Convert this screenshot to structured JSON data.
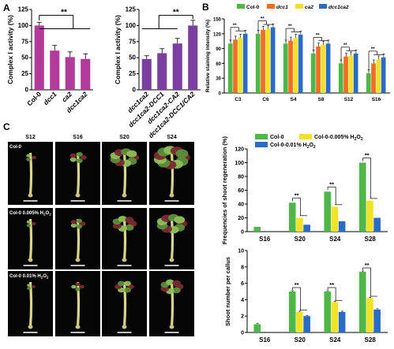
{
  "panel_letters": {
    "a": "A",
    "b": "B",
    "c": "C"
  },
  "chart_data": [
    {
      "panel": "A",
      "type": "bar",
      "ylabel": "Complex  I activity (%)",
      "ylim": [
        0,
        125
      ],
      "yticks": [
        0,
        25,
        50,
        75,
        100,
        125
      ],
      "categories": [
        "Col-0",
        "dcc1",
        "ca2",
        "dcc1ca2"
      ],
      "values": [
        100,
        61,
        51,
        48
      ],
      "errors": [
        5,
        8,
        8,
        8
      ],
      "color": "#b23a9b",
      "significance": "**"
    },
    {
      "panel": "A",
      "type": "bar",
      "ylabel": "Complex  I activity (%)",
      "ylim": [
        0,
        125
      ],
      "yticks": [
        0,
        25,
        50,
        75,
        100,
        125
      ],
      "categories": [
        "dcc1ca2",
        "dcc1ca2-DCC1",
        "dcc1ca2-CA2",
        "dcc1ca2-DCC1/CA2"
      ],
      "values": [
        48,
        57,
        72,
        100
      ],
      "errors": [
        5,
        7,
        8,
        8
      ],
      "color": "#7b3fa0",
      "significance": "**"
    },
    {
      "panel": "B",
      "type": "bar",
      "ylabel": "Relative staining intensity (%)",
      "ylim": [
        0,
        150
      ],
      "yticks": [
        0,
        30,
        60,
        90,
        120,
        150
      ],
      "categories": [
        "C3",
        "C6",
        "S4",
        "S8",
        "S12",
        "S16"
      ],
      "series": [
        {
          "name": "Col-0",
          "color": "#4db848",
          "values": [
            100,
            120,
            100,
            80,
            60,
            40
          ]
        },
        {
          "name": "dcc1",
          "color": "#f26d21",
          "values": [
            108,
            128,
            106,
            94,
            74,
            60
          ]
        },
        {
          "name": "ca2",
          "color": "#f2e227",
          "values": [
            112,
            130,
            112,
            98,
            76,
            68
          ]
        },
        {
          "name": "dcc1ca2",
          "color": "#2a6ac8",
          "values": [
            120,
            133,
            118,
            100,
            80,
            72
          ]
        }
      ],
      "significance": [
        "**",
        "**",
        "**",
        "**",
        "**",
        "**"
      ]
    },
    {
      "panel": "C",
      "type": "bar",
      "ylabel": "Frequencies of shoot regeneration (%)",
      "ylim": [
        0,
        120
      ],
      "yticks": [
        0,
        20,
        40,
        60,
        80,
        100,
        120
      ],
      "categories": [
        "S16",
        "S20",
        "S24",
        "S28"
      ],
      "series": [
        {
          "name": "Col-0",
          "color": "#4db848",
          "values": [
            7,
            42,
            58,
            100
          ]
        },
        {
          "name": "Col-0-0.005% H2O2",
          "color": "#f2e227",
          "values": [
            0,
            20,
            36,
            45
          ]
        },
        {
          "name": "Col-0-0.01% H2O2",
          "color": "#2a6ac8",
          "values": [
            0,
            10,
            15,
            20
          ]
        }
      ],
      "significance": [
        "",
        "**",
        "**",
        "**"
      ]
    },
    {
      "panel": "C",
      "type": "bar",
      "ylabel": "Shoot number per callus",
      "ylim": [
        0,
        10
      ],
      "yticks": [
        0,
        2,
        4,
        6,
        8,
        10
      ],
      "categories": [
        "S16",
        "S20",
        "S24",
        "S28"
      ],
      "series": [
        {
          "name": "Col-0",
          "color": "#4db848",
          "values": [
            1,
            5,
            5,
            7.4
          ]
        },
        {
          "name": "Col-0-0.005% H2O2",
          "color": "#f2e227",
          "values": [
            0,
            2.5,
            3.7,
            4.2
          ]
        },
        {
          "name": "Col-0-0.01% H2O2",
          "color": "#2a6ac8",
          "values": [
            0,
            2,
            2.5,
            2.8
          ]
        }
      ],
      "significance": [
        "",
        "**",
        "**",
        "**"
      ]
    }
  ],
  "photos": {
    "columns": [
      "S12",
      "S16",
      "S20",
      "S24"
    ],
    "rows": [
      {
        "label": "Col-0",
        "sub": ""
      },
      {
        "label": "Col-0  0.005% H",
        "sub": "2",
        "tail": "O",
        "sub2": "2"
      },
      {
        "label": "Col-0  0.01% H",
        "sub": "2",
        "tail": "O",
        "sub2": "2"
      }
    ]
  },
  "legend_c": {
    "item1": "Col-0",
    "item2_prefix": "Col-0-0.005% H",
    "item3_prefix": "Col-0-0.01% H",
    "h2o2_sub": "2",
    "h2o2_o": "O"
  }
}
